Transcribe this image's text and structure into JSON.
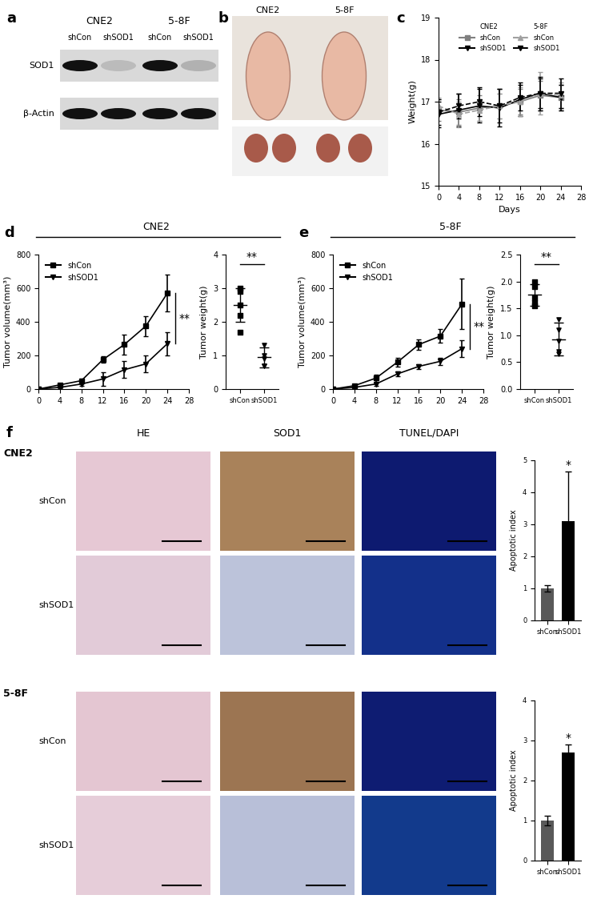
{
  "chart_data": [
    {
      "type": "line",
      "panel": "c",
      "xlabel": "Days",
      "ylabel": "Weight(g)",
      "x": [
        0,
        4,
        8,
        12,
        16,
        20,
        24
      ],
      "xlim": [
        0,
        28
      ],
      "xticks": [
        0,
        4,
        8,
        12,
        16,
        20,
        24,
        28
      ],
      "ylim": [
        15,
        19
      ],
      "yticks": [
        15,
        16,
        17,
        18,
        19
      ],
      "legend": "upper center",
      "series": [
        {
          "name": "shCon",
          "group": "CNE2",
          "color": "#808080",
          "marker": "square",
          "line_style": "solid",
          "values": [
            16.8,
            16.75,
            16.85,
            16.9,
            17.0,
            17.15,
            17.1
          ],
          "errors": [
            0.25,
            0.3,
            0.3,
            0.3,
            0.3,
            0.35,
            0.3
          ]
        },
        {
          "name": "shSOD1",
          "group": "CNE2",
          "color": "#000000",
          "marker": "triangle_down",
          "line_style": "solid",
          "values": [
            16.7,
            16.8,
            16.9,
            16.85,
            17.05,
            17.2,
            17.1
          ],
          "errors": [
            0.3,
            0.4,
            0.4,
            0.45,
            0.4,
            0.35,
            0.3
          ]
        },
        {
          "name": "shCon",
          "group": "5-8F",
          "color": "#a0a0a0",
          "marker": "triangle",
          "line_style": "dashed",
          "values": [
            16.9,
            16.7,
            16.8,
            16.9,
            17.0,
            17.2,
            17.15
          ],
          "errors": [
            0.2,
            0.3,
            0.25,
            0.3,
            0.35,
            0.5,
            0.3
          ]
        },
        {
          "name": "shSOD1",
          "group": "5-8F",
          "color": "#000000",
          "marker": "triangle_down",
          "line_style": "dashed",
          "values": [
            16.75,
            16.9,
            17.0,
            16.9,
            17.1,
            17.2,
            17.2
          ],
          "errors": [
            0.3,
            0.3,
            0.35,
            0.4,
            0.3,
            0.4,
            0.35
          ]
        }
      ]
    },
    {
      "type": "line",
      "panel": "d",
      "title": "CNE2",
      "ylabel": "Tumor volume(mm³)",
      "x": [
        0,
        4,
        8,
        12,
        16,
        20,
        24
      ],
      "xlim": [
        0,
        28
      ],
      "xticks": [
        0,
        4,
        8,
        12,
        16,
        20,
        24,
        28
      ],
      "ylim": [
        0,
        800
      ],
      "yticks": [
        0,
        200,
        400,
        600,
        800
      ],
      "legend": "upper left",
      "annotations": [
        "**"
      ],
      "series": [
        {
          "name": "shCon",
          "color": "#000000",
          "marker": "square",
          "line_style": "solid",
          "values": [
            0,
            25,
            50,
            175,
            265,
            375,
            570
          ],
          "errors": [
            0,
            5,
            10,
            20,
            60,
            60,
            110
          ]
        },
        {
          "name": "shSOD1",
          "color": "#000000",
          "marker": "triangle_down",
          "line_style": "solid",
          "values": [
            0,
            10,
            30,
            60,
            115,
            150,
            270
          ],
          "errors": [
            0,
            5,
            10,
            40,
            50,
            50,
            70
          ]
        }
      ]
    },
    {
      "type": "scatter",
      "ylabel": "Tumor weight(g)",
      "categories": [
        "shCon",
        "shSOD1"
      ],
      "markers": [
        "square",
        "triangle_down"
      ],
      "points": [
        [
          3.0,
          2.9,
          2.5,
          2.2,
          1.7
        ],
        [
          1.3,
          1.0,
          0.9,
          0.7,
          0.7
        ]
      ],
      "means": [
        2.5,
        0.95
      ],
      "errors": [
        0.5,
        0.3
      ],
      "ylim": [
        0,
        4
      ],
      "yticks": [
        0,
        1,
        2,
        3,
        4
      ],
      "annotations": [
        "**"
      ]
    },
    {
      "type": "line",
      "panel": "e",
      "title": "5-8F",
      "ylabel": "Tumor volume(mm³)",
      "x": [
        0,
        4,
        8,
        12,
        16,
        20,
        24
      ],
      "xlim": [
        0,
        28
      ],
      "xticks": [
        0,
        4,
        8,
        12,
        16,
        20,
        24,
        28
      ],
      "ylim": [
        0,
        800
      ],
      "yticks": [
        0,
        200,
        400,
        600,
        800
      ],
      "legend": "upper left",
      "annotations": [
        "**"
      ],
      "series": [
        {
          "name": "shCon",
          "color": "#000000",
          "marker": "square",
          "line_style": "solid",
          "values": [
            0,
            20,
            65,
            160,
            265,
            315,
            505
          ],
          "errors": [
            0,
            5,
            20,
            25,
            30,
            40,
            150
          ]
        },
        {
          "name": "shSOD1",
          "color": "#000000",
          "marker": "triangle_down",
          "line_style": "solid",
          "values": [
            0,
            10,
            30,
            90,
            135,
            165,
            240
          ],
          "errors": [
            0,
            5,
            10,
            15,
            15,
            20,
            50
          ]
        }
      ]
    },
    {
      "type": "scatter",
      "ylabel": "Tumor weight(g)",
      "categories": [
        "shCon",
        "shSOD1"
      ],
      "markers": [
        "square",
        "triangle_down"
      ],
      "points": [
        [
          2.0,
          1.9,
          1.7,
          1.6,
          1.55
        ],
        [
          1.3,
          1.1,
          0.9,
          0.7,
          0.65
        ]
      ],
      "means": [
        1.75,
        0.93
      ],
      "errors": [
        0.2,
        0.3
      ],
      "ylim": [
        0,
        2.5
      ],
      "yticks": [
        {
          "value": 0,
          "label": "0.0"
        },
        0.5,
        {
          "value": 1,
          "label": "1.0"
        },
        1.5,
        {
          "value": 2,
          "label": "2.0"
        },
        2.5
      ],
      "annotations": [
        "**"
      ]
    },
    {
      "type": "bar",
      "ylabel": "Apoptotic index",
      "categories": [
        "shCon",
        "shSOD1"
      ],
      "values": [
        1.0,
        3.1
      ],
      "errors": [
        0.1,
        1.55
      ],
      "colors": [
        "#595959",
        "#000000"
      ],
      "ylim": [
        0,
        5
      ],
      "yticks": [
        0,
        1,
        2,
        3,
        4,
        5
      ],
      "annotations": [
        "*"
      ]
    },
    {
      "type": "bar",
      "ylabel": "Apoptotic index",
      "categories": [
        "shCon",
        "shSOD1"
      ],
      "values": [
        1.0,
        2.7
      ],
      "errors": [
        0.12,
        0.2
      ],
      "colors": [
        "#595959",
        "#000000"
      ],
      "ylim": [
        0,
        4
      ],
      "yticks": [
        0,
        1,
        2,
        3,
        4
      ],
      "annotations": [
        "*"
      ]
    }
  ],
  "blot": {
    "panel": "a",
    "cell_lines": [
      "CNE2",
      "5-8F"
    ],
    "lanes": [
      "shCon",
      "shSOD1",
      "shCon",
      "shSOD1"
    ],
    "proteins": [
      "SOD1",
      "β-Actin"
    ]
  },
  "photo": {
    "panel": "b",
    "labels": [
      "CNE2",
      "5-8F"
    ]
  },
  "images": {
    "panel": "f",
    "columns": [
      "HE",
      "SOD1",
      "TUNEL/DAPI"
    ],
    "groups": [
      {
        "name": "CNE2",
        "rows": [
          "shCon",
          "shSOD1"
        ]
      },
      {
        "name": "5-8F",
        "rows": [
          "shCon",
          "shSOD1"
        ]
      }
    ]
  }
}
